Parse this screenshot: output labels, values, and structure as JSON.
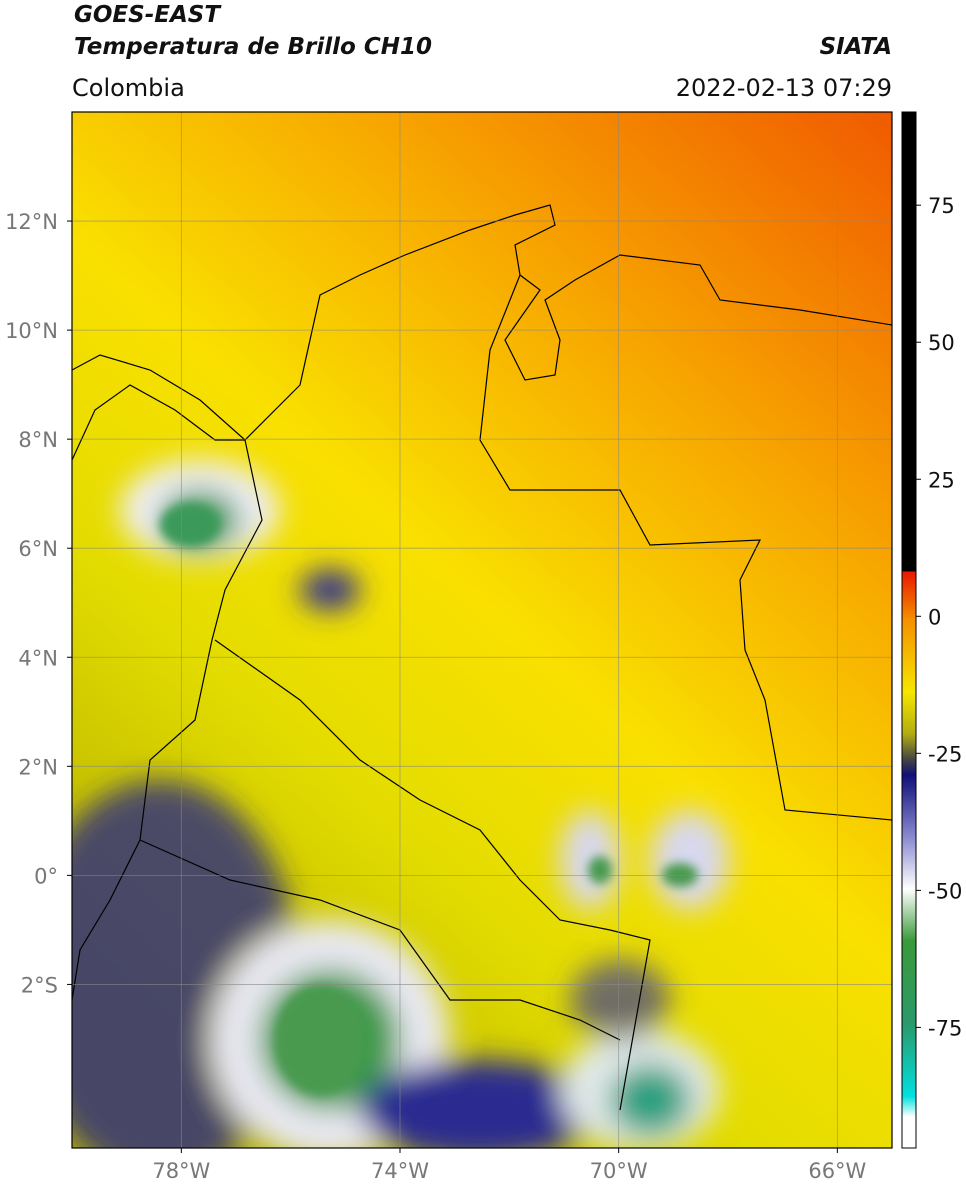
{
  "header": {
    "title": "GOES-EAST",
    "subtitle": "Temperatura de Brillo CH10",
    "source": "SIATA",
    "region": "Colombia",
    "datetime": "2022-02-13 07:29"
  },
  "map": {
    "lonlim": [
      -80,
      -65
    ],
    "latlim": [
      -5,
      14
    ],
    "lon_ticks": [
      {
        "value": -78,
        "label": "78°W"
      },
      {
        "value": -74,
        "label": "74°W"
      },
      {
        "value": -70,
        "label": "70°W"
      },
      {
        "value": -66,
        "label": "66°W"
      }
    ],
    "lat_ticks": [
      {
        "value": 12,
        "label": "12°N"
      },
      {
        "value": 10,
        "label": "10°N"
      },
      {
        "value": 8,
        "label": "8°N"
      },
      {
        "value": 6,
        "label": "6°N"
      },
      {
        "value": 4,
        "label": "4°N"
      },
      {
        "value": 2,
        "label": "2°N"
      },
      {
        "value": 0,
        "label": "0°"
      },
      {
        "value": -2,
        "label": "2°S"
      }
    ]
  },
  "colorbar": {
    "lim": [
      -97,
      92
    ],
    "ticks": [
      75,
      50,
      25,
      0,
      -25,
      -50,
      -75
    ]
  }
}
